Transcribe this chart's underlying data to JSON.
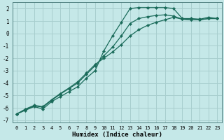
{
  "xlabel": "Humidex (Indice chaleur)",
  "bg_color": "#c5e8e8",
  "grid_color": "#a8cece",
  "line_color": "#1a6b5a",
  "xlim": [
    -0.5,
    23.5
  ],
  "ylim": [
    -7.2,
    2.5
  ],
  "yticks": [
    2,
    1,
    0,
    -1,
    -2,
    -3,
    -4,
    -5,
    -6,
    -7
  ],
  "xticks": [
    0,
    1,
    2,
    3,
    4,
    5,
    6,
    7,
    8,
    9,
    10,
    11,
    12,
    13,
    14,
    15,
    16,
    17,
    18,
    19,
    20,
    21,
    22,
    23
  ],
  "line1_x": [
    0,
    1,
    2,
    3,
    4,
    5,
    6,
    7,
    8,
    9,
    10,
    11,
    12,
    13,
    14,
    15,
    16,
    17,
    18,
    19,
    20,
    21,
    22,
    23
  ],
  "line1_y": [
    -6.5,
    -6.2,
    -5.9,
    -6.1,
    -5.5,
    -5.1,
    -4.7,
    -4.3,
    -3.6,
    -3.0,
    -1.4,
    -0.2,
    0.9,
    2.0,
    2.1,
    2.1,
    2.1,
    2.1,
    2.0,
    1.2,
    1.2,
    1.15,
    1.3,
    1.2
  ],
  "line2_x": [
    0,
    1,
    2,
    3,
    4,
    5,
    6,
    7,
    8,
    9,
    10,
    11,
    12,
    13,
    14,
    15,
    16,
    17,
    18,
    19,
    20,
    21,
    22,
    23
  ],
  "line2_y": [
    -6.5,
    -6.15,
    -5.85,
    -5.95,
    -5.4,
    -4.9,
    -4.45,
    -4.0,
    -3.3,
    -2.6,
    -1.8,
    -1.1,
    -0.2,
    0.8,
    1.2,
    1.35,
    1.45,
    1.5,
    1.4,
    1.15,
    1.1,
    1.1,
    1.2,
    1.2
  ],
  "line3_x": [
    0,
    1,
    2,
    3,
    4,
    5,
    6,
    7,
    8,
    9,
    10,
    11,
    12,
    13,
    14,
    15,
    16,
    17,
    18,
    19,
    20,
    21,
    22,
    23
  ],
  "line3_y": [
    -6.5,
    -6.1,
    -5.8,
    -5.9,
    -5.35,
    -4.85,
    -4.4,
    -3.9,
    -3.2,
    -2.5,
    -2.0,
    -1.5,
    -0.9,
    -0.2,
    0.3,
    0.65,
    0.9,
    1.1,
    1.3,
    1.15,
    1.1,
    1.1,
    1.2,
    1.2
  ]
}
